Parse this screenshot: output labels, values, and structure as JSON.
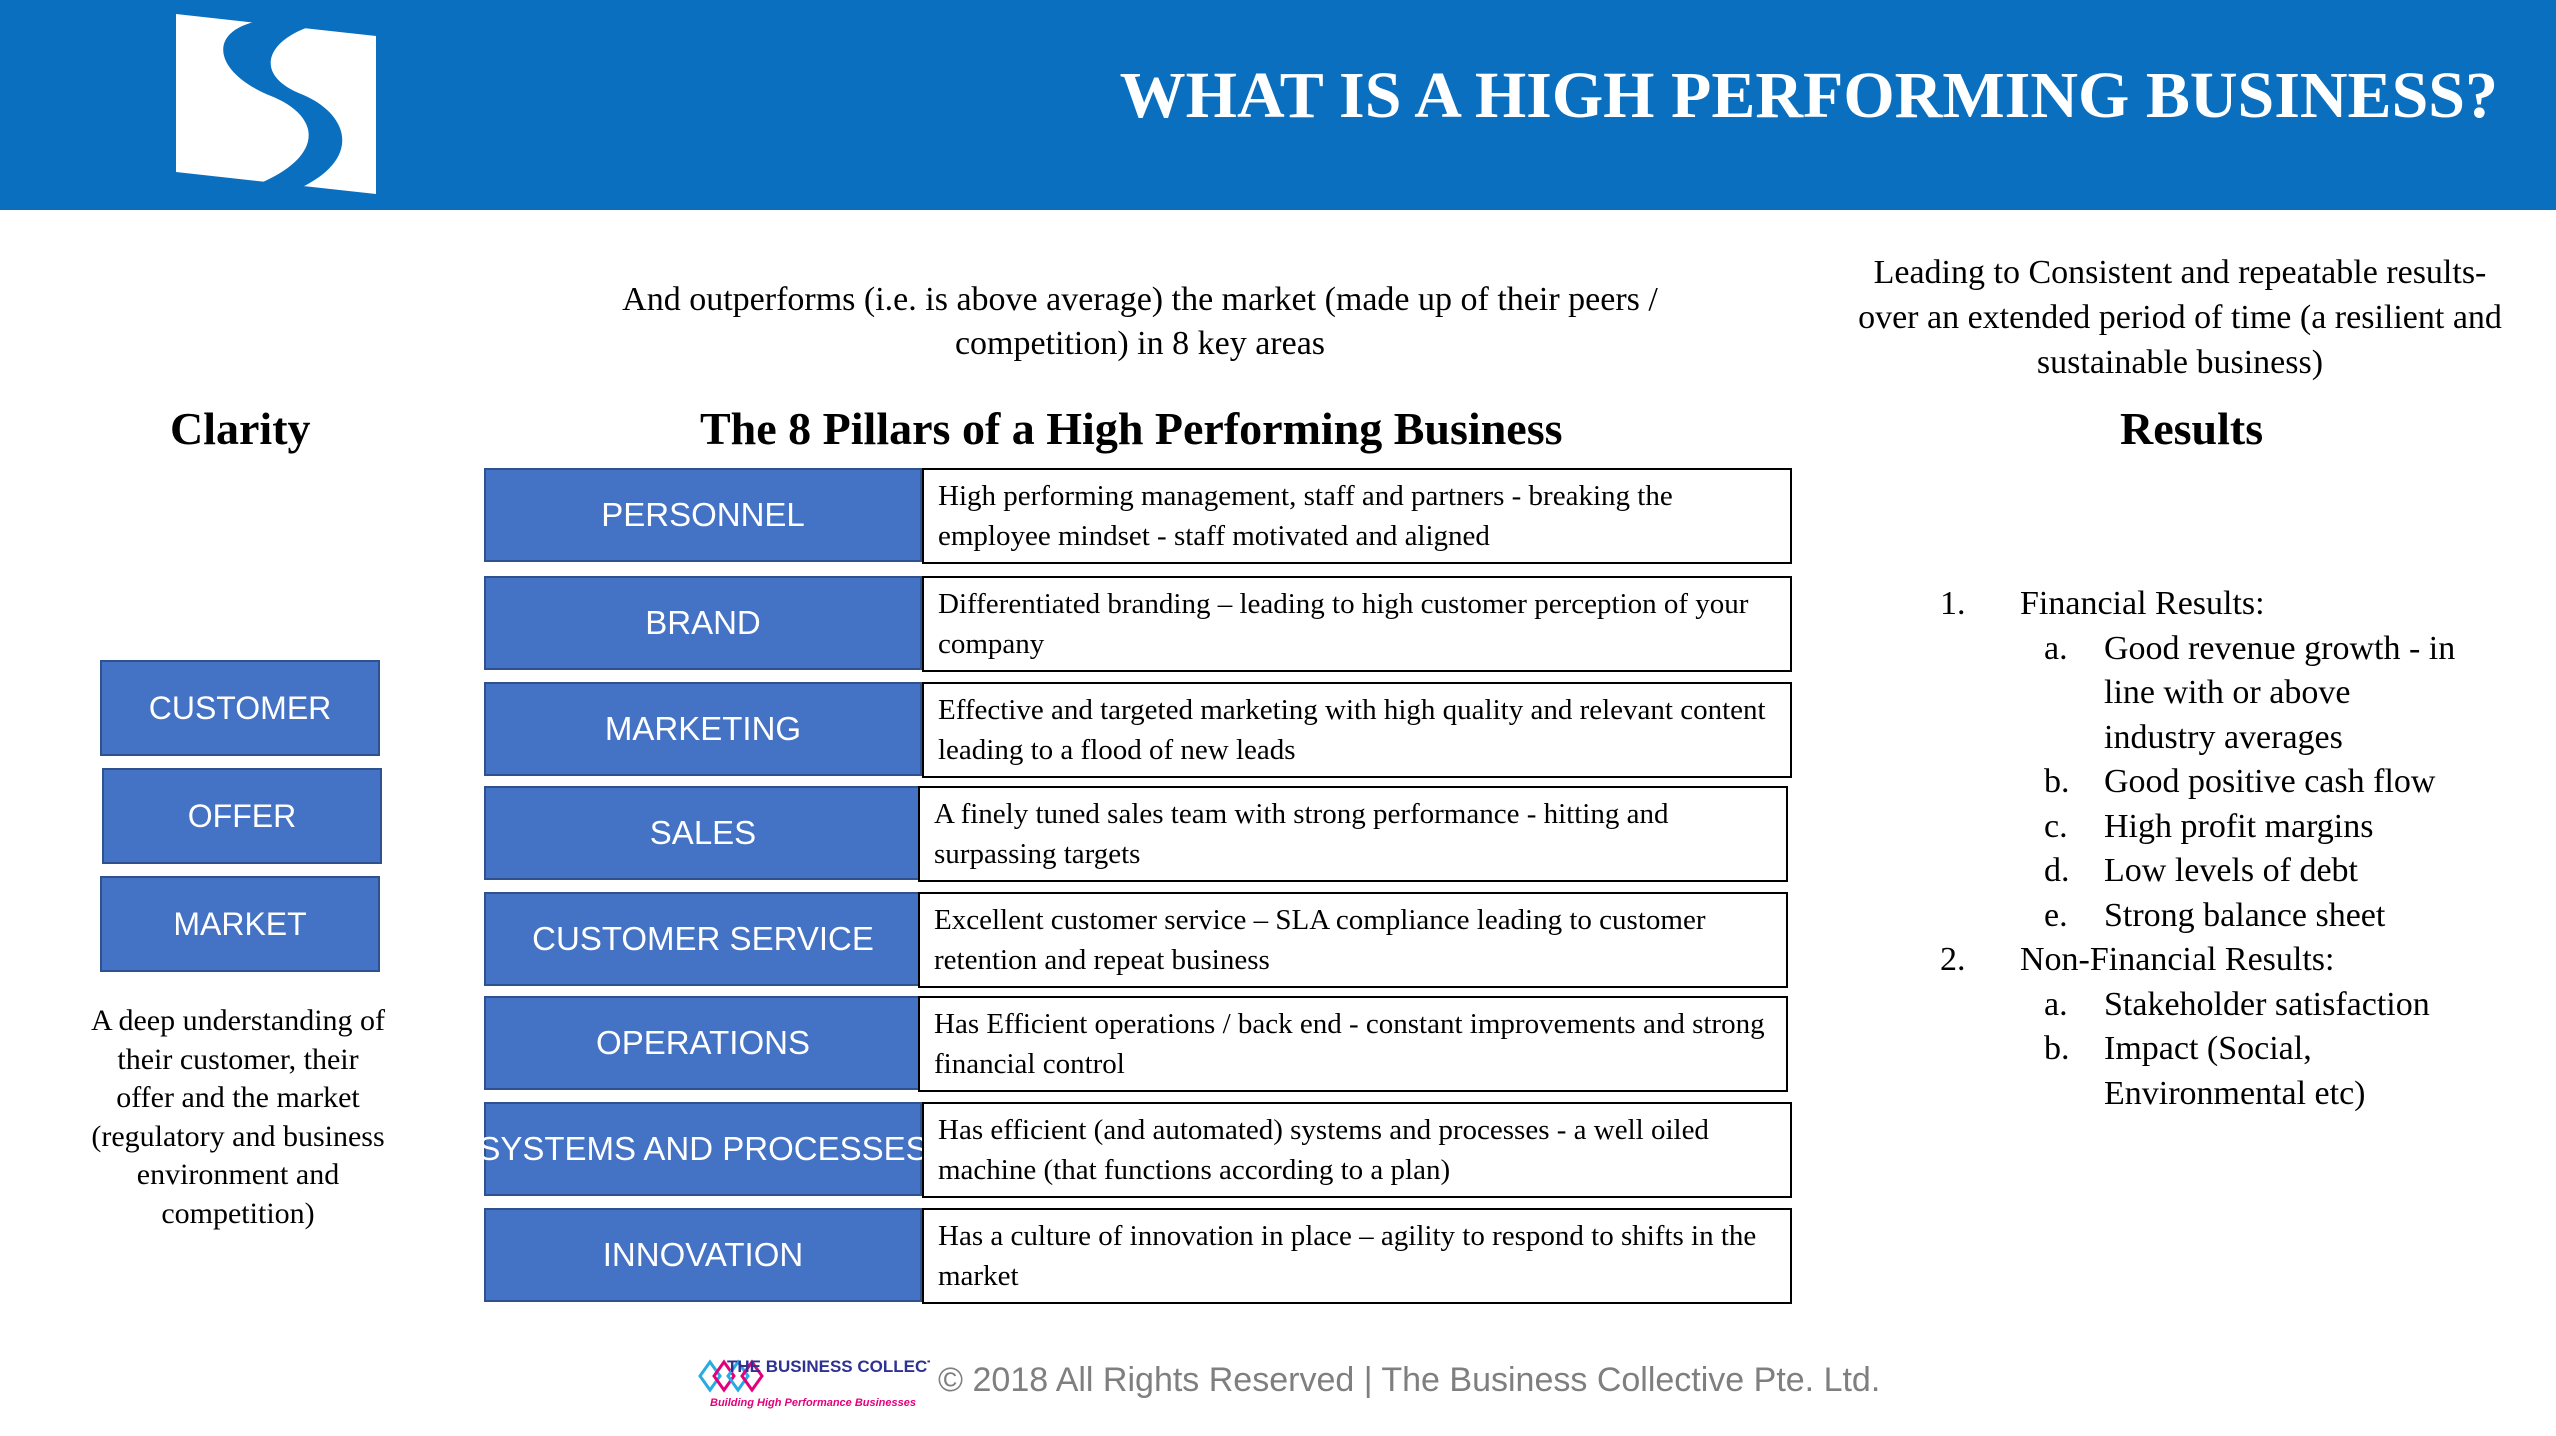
{
  "header": {
    "title": "WHAT IS A HIGH PERFORMING BUSINESS?",
    "bg_color": "#0B6FC0",
    "logo_icon": "s-curve-logo-icon"
  },
  "intro": {
    "center": "And outperforms (i.e. is above average) the market (made up of their peers / competition) in 8 key areas",
    "right": "Leading to Consistent and repeatable results- over an extended period of time (a resilient and sustainable business)"
  },
  "headings": {
    "clarity": "Clarity",
    "pillars": "The 8 Pillars of a High Performing Business",
    "results": "Results"
  },
  "clarity": {
    "boxes": [
      "CUSTOMER",
      "OFFER",
      "MARKET"
    ],
    "description": "A deep understanding of their customer, their offer and the market (regulatory and business environment and competition)"
  },
  "pillars": [
    {
      "label": "PERSONNEL",
      "description": "High performing management, staff and partners  - breaking the employee mindset - staff motivated and aligned"
    },
    {
      "label": "BRAND",
      "description": "Differentiated branding – leading to high customer perception of your company"
    },
    {
      "label": "MARKETING",
      "description": "Effective and targeted marketing with high quality and relevant content leading to a flood of new leads"
    },
    {
      "label": "SALES",
      "description": "A finely tuned sales team with strong performance - hitting and surpassing targets"
    },
    {
      "label": "CUSTOMER SERVICE",
      "description": "Excellent customer service – SLA compliance leading to customer retention and repeat business"
    },
    {
      "label": "OPERATIONS",
      "description": "Has Efficient operations / back end - constant improvements and strong financial control"
    },
    {
      "label": "SYSTEMS AND PROCESSES",
      "description": "Has efficient  (and automated) systems and processes - a well oiled machine (that functions according to a plan)"
    },
    {
      "label": "INNOVATION",
      "description": "Has a culture of innovation in place – agility to respond to shifts in the market"
    }
  ],
  "results": {
    "items": [
      {
        "num": "1.",
        "text": "Financial Results:",
        "subs": [
          {
            "letter": "a.",
            "text": "Good revenue growth - in line with or above industry averages"
          },
          {
            "letter": "b.",
            "text": "Good positive cash flow"
          },
          {
            "letter": "c.",
            "text": "High profit margins"
          },
          {
            "letter": "d.",
            "text": "Low levels of debt"
          },
          {
            "letter": "e.",
            "text": "Strong balance sheet"
          }
        ]
      },
      {
        "num": "2.",
        "text": "Non-Financial Results:",
        "subs": [
          {
            "letter": "a.",
            "text": "Stakeholder satisfaction"
          },
          {
            "letter": "b.",
            "text": "Impact (Social, Environmental etc)"
          }
        ]
      }
    ]
  },
  "footer": {
    "logo_title": "THE BUSINESS COLLECTIVE",
    "logo_tagline": "Building High Performance Businesses",
    "copyright": "© 2018 All Rights Reserved | The Business Collective Pte. Ltd."
  },
  "colors": {
    "box_fill": "#4472C4",
    "box_border": "#2F528F",
    "footer_text": "#7F7F7F"
  }
}
